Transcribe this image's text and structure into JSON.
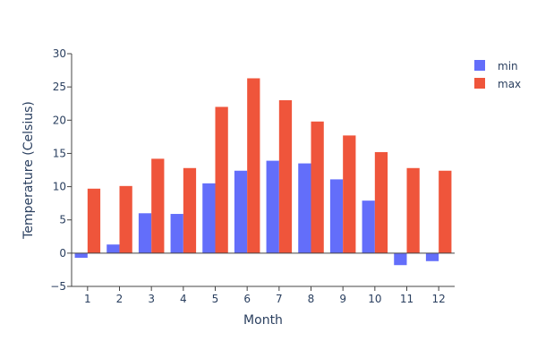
{
  "chart_data": {
    "type": "bar",
    "title": "",
    "xlabel": "Month",
    "ylabel": "Temperature (Celsius)",
    "categories": [
      "1",
      "2",
      "3",
      "4",
      "5",
      "6",
      "7",
      "8",
      "9",
      "10",
      "11",
      "12"
    ],
    "ylim": [
      -5,
      30
    ],
    "yticks": [
      -5,
      0,
      5,
      10,
      15,
      20,
      25,
      30
    ],
    "legend_position": "top-right",
    "grid": false,
    "series": [
      {
        "name": "min",
        "color": "#636efa",
        "values": [
          -0.7,
          1.3,
          6.0,
          5.9,
          10.5,
          12.4,
          13.9,
          13.5,
          11.1,
          7.9,
          -1.8,
          -1.2
        ]
      },
      {
        "name": "max",
        "color": "#ef553b",
        "values": [
          9.7,
          10.1,
          14.2,
          12.8,
          22.0,
          26.3,
          23.0,
          19.8,
          17.7,
          15.2,
          12.8,
          12.4
        ]
      }
    ]
  }
}
